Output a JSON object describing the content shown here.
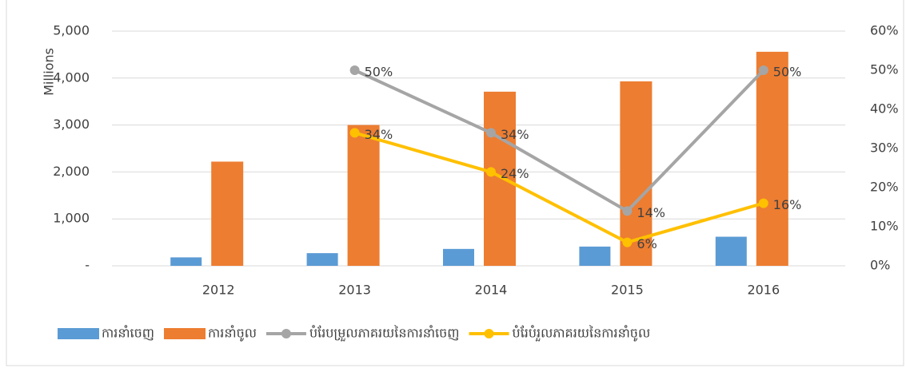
{
  "chart_data": {
    "type": "bar-line",
    "y_axis_label": "Millions",
    "categories": [
      "2012",
      "2013",
      "2014",
      "2015",
      "2016"
    ],
    "series": [
      {
        "name": "ការនាំចេញ",
        "type": "bar",
        "color": "#5b9bd5",
        "values": [
          180,
          270,
          360,
          410,
          620
        ]
      },
      {
        "name": "ការនាំចូល",
        "type": "bar",
        "color": "#ed7d31",
        "values": [
          2220,
          3000,
          3710,
          3930,
          4560
        ]
      },
      {
        "name": "បំរែបម្រួលភាគរយនៃការនាំចេញ",
        "type": "line",
        "axis": "y2",
        "color": "#a5a5a5",
        "values": [
          null,
          50,
          34,
          14,
          50
        ],
        "value_labels": [
          null,
          "50%",
          "34%",
          "14%",
          "50%"
        ]
      },
      {
        "name": "បំរែបំរួលភាគរយនៃការនាំចូល",
        "type": "line",
        "axis": "y2",
        "color": "#ffc000",
        "values": [
          null,
          34,
          24,
          6,
          16
        ],
        "value_labels": [
          null,
          "34%",
          "24%",
          "6%",
          "16%"
        ]
      }
    ],
    "ylim": [
      0,
      5000
    ],
    "yticks": [
      {
        "value": 0,
        "label": "-"
      },
      {
        "value": 1000,
        "label": "1,000"
      },
      {
        "value": 2000,
        "label": "2,000"
      },
      {
        "value": 3000,
        "label": "3,000"
      },
      {
        "value": 4000,
        "label": "4,000"
      },
      {
        "value": 5000,
        "label": "5,000"
      }
    ],
    "y2lim": [
      0,
      60
    ],
    "y2ticks": [
      {
        "value": 0,
        "label": "0%"
      },
      {
        "value": 10,
        "label": "10%"
      },
      {
        "value": 20,
        "label": "20%"
      },
      {
        "value": 30,
        "label": "30%"
      },
      {
        "value": 40,
        "label": "40%"
      },
      {
        "value": 50,
        "label": "50%"
      },
      {
        "value": 60,
        "label": "60%"
      }
    ],
    "grid": true,
    "legend": "bottom"
  }
}
